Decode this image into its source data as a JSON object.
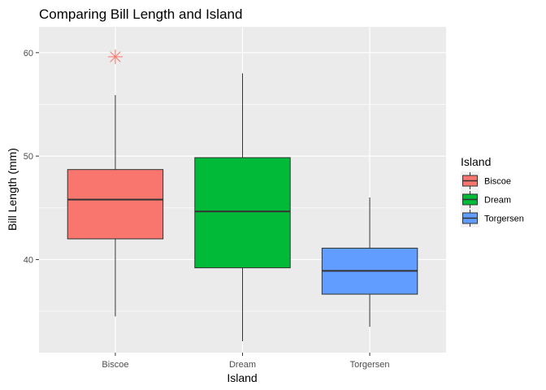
{
  "chart_data": {
    "type": "boxplot",
    "title": "Comparing Bill Length and Island",
    "xlabel": "Island",
    "ylabel": "Bill Length (mm)",
    "ylim": [
      31,
      62.5
    ],
    "yticks": [
      40,
      50,
      60
    ],
    "grid": true,
    "legend": {
      "title": "Island",
      "position": "right"
    },
    "categories": [
      "Biscoe",
      "Dream",
      "Torgersen"
    ],
    "boxes": [
      {
        "category": "Biscoe",
        "min": 34.5,
        "q1": 42.0,
        "median": 45.8,
        "q3": 48.7,
        "max": 55.9,
        "outliers": [
          59.6
        ],
        "color": "#F8766D"
      },
      {
        "category": "Dream",
        "min": 32.1,
        "q1": 39.2,
        "median": 44.65,
        "q3": 49.85,
        "max": 58.0,
        "outliers": [],
        "color": "#00BA38"
      },
      {
        "category": "Torgersen",
        "min": 33.5,
        "q1": 36.65,
        "median": 38.9,
        "q3": 41.1,
        "max": 46.0,
        "outliers": [],
        "color": "#619CFF"
      }
    ],
    "outlier_color": "#F8766D"
  }
}
